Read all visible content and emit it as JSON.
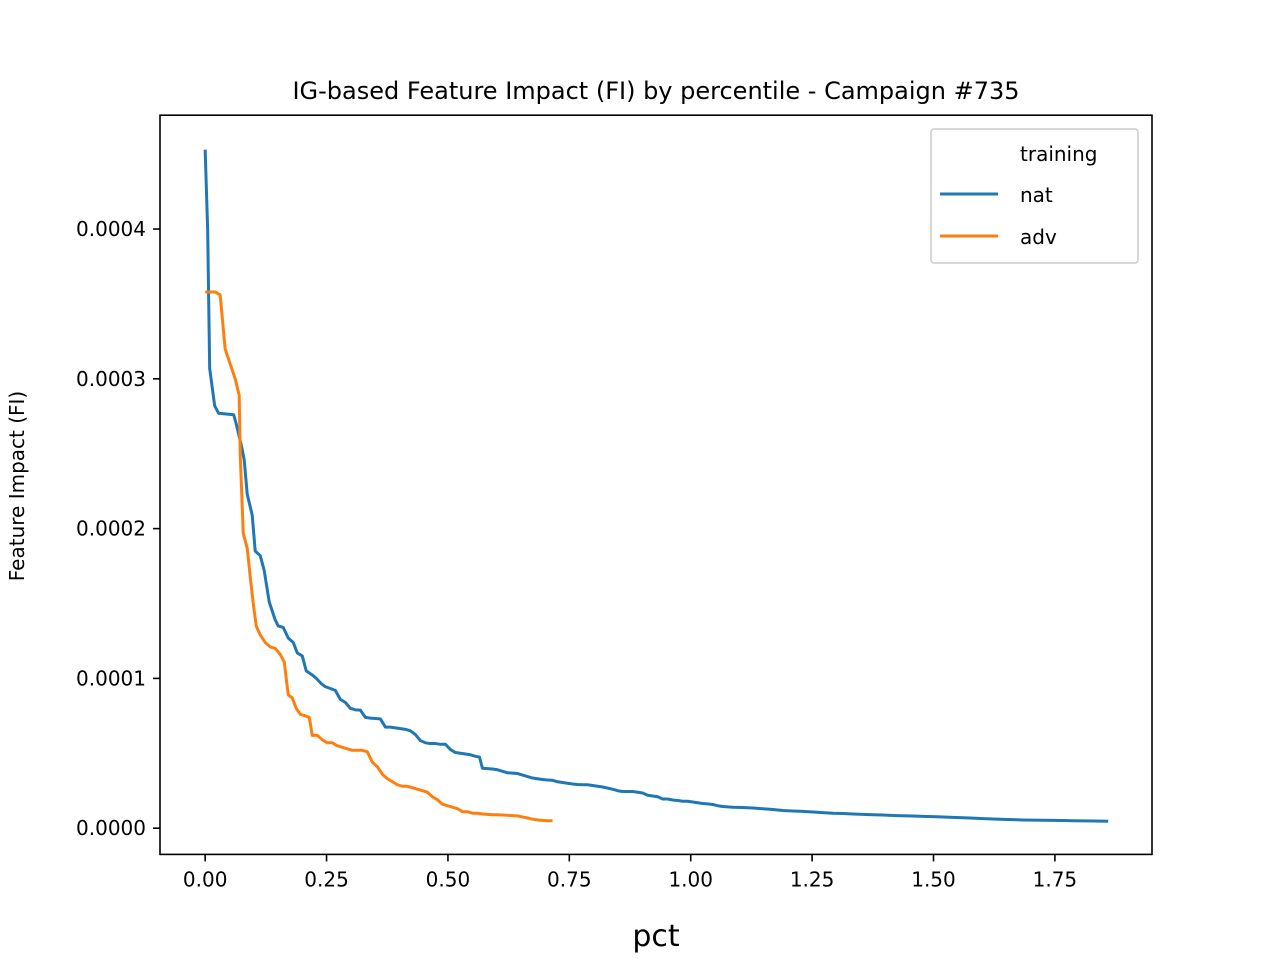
{
  "chart_data": {
    "type": "line",
    "title": "IG-based Feature Impact (FI) by percentile - Campaign #735",
    "xlabel": "pct",
    "ylabel": "Feature Impact (FI)",
    "xlim": [
      -0.093,
      1.95
    ],
    "ylim": [
      -1.75e-05,
      0.000476
    ],
    "x_ticks": [
      0.0,
      0.25,
      0.5,
      0.75,
      1.0,
      1.25,
      1.5,
      1.75
    ],
    "x_tick_labels": [
      "0.00",
      "0.25",
      "0.50",
      "0.75",
      "1.00",
      "1.25",
      "1.50",
      "1.75"
    ],
    "y_ticks": [
      0.0,
      0.0001,
      0.0002,
      0.0003,
      0.0004
    ],
    "y_tick_labels": [
      "0.0000",
      "0.0001",
      "0.0002",
      "0.0003",
      "0.0004"
    ],
    "grid": false,
    "legend": {
      "title": "training",
      "position": "top-right"
    },
    "series": [
      {
        "name": "nat",
        "color": "#1f77b4",
        "points": [
          [
            0.0,
            0.000453
          ],
          [
            0.0052,
            0.000399
          ],
          [
            0.0093,
            0.000307
          ],
          [
            0.0196,
            0.000282
          ],
          [
            0.0278,
            0.000277
          ],
          [
            0.0588,
            0.000276
          ],
          [
            0.0639,
            0.00027
          ],
          [
            0.0742,
            0.000256
          ],
          [
            0.0804,
            0.000246
          ],
          [
            0.0866,
            0.000223
          ],
          [
            0.0969,
            0.000209
          ],
          [
            0.1031,
            0.000185
          ],
          [
            0.1134,
            0.000182
          ],
          [
            0.1216,
            0.000172
          ],
          [
            0.132,
            0.000151
          ],
          [
            0.1443,
            0.000139
          ],
          [
            0.1505,
            0.000135
          ],
          [
            0.1608,
            0.000134
          ],
          [
            0.1711,
            0.000127
          ],
          [
            0.1814,
            0.000124
          ],
          [
            0.1897,
            0.000117
          ],
          [
            0.2,
            0.000115
          ],
          [
            0.2082,
            0.000105
          ],
          [
            0.2216,
            0.000102
          ],
          [
            0.2289,
            0.0001
          ],
          [
            0.2392,
            9.65e-05
          ],
          [
            0.2474,
            9.45e-05
          ],
          [
            0.2557,
            9.35e-05
          ],
          [
            0.268,
            9.2e-05
          ],
          [
            0.2784,
            8.6e-05
          ],
          [
            0.2887,
            8.4e-05
          ],
          [
            0.299,
            8e-05
          ],
          [
            0.3093,
            7.9e-05
          ],
          [
            0.3196,
            7.88e-05
          ],
          [
            0.3299,
            7.4e-05
          ],
          [
            0.3402,
            7.35e-05
          ],
          [
            0.3608,
            7.3e-05
          ],
          [
            0.3711,
            6.75e-05
          ],
          [
            0.3814,
            6.75e-05
          ],
          [
            0.3918,
            6.7e-05
          ],
          [
            0.4021,
            6.65e-05
          ],
          [
            0.4124,
            6.6e-05
          ],
          [
            0.4227,
            6.5e-05
          ],
          [
            0.433,
            6.25e-05
          ],
          [
            0.4433,
            5.85e-05
          ],
          [
            0.4536,
            5.7e-05
          ],
          [
            0.4639,
            5.65e-05
          ],
          [
            0.4742,
            5.65e-05
          ],
          [
            0.4845,
            5.6e-05
          ],
          [
            0.4948,
            5.6e-05
          ],
          [
            0.5052,
            5.25e-05
          ],
          [
            0.5155,
            5.05e-05
          ],
          [
            0.5258,
            5e-05
          ],
          [
            0.5361,
            4.95e-05
          ],
          [
            0.5464,
            4.9e-05
          ],
          [
            0.5567,
            4.8e-05
          ],
          [
            0.5649,
            4.75e-05
          ],
          [
            0.5711,
            4e-05
          ],
          [
            0.5814,
            3.98e-05
          ],
          [
            0.5918,
            3.95e-05
          ],
          [
            0.6021,
            3.9e-05
          ],
          [
            0.6124,
            3.8e-05
          ],
          [
            0.6227,
            3.7e-05
          ],
          [
            0.633,
            3.68e-05
          ],
          [
            0.6433,
            3.65e-05
          ],
          [
            0.6536,
            3.55e-05
          ],
          [
            0.6639,
            3.45e-05
          ],
          [
            0.6742,
            3.35e-05
          ],
          [
            0.6845,
            3.3e-05
          ],
          [
            0.6948,
            3.25e-05
          ],
          [
            0.7052,
            3.22e-05
          ],
          [
            0.7155,
            3.2e-05
          ],
          [
            0.7258,
            3.1e-05
          ],
          [
            0.7361,
            3.05e-05
          ],
          [
            0.7464,
            3e-05
          ],
          [
            0.7567,
            2.95e-05
          ],
          [
            0.767,
            2.92e-05
          ],
          [
            0.7773,
            2.9e-05
          ],
          [
            0.7876,
            2.9e-05
          ],
          [
            0.7979,
            2.85e-05
          ],
          [
            0.8082,
            2.8e-05
          ],
          [
            0.8186,
            2.75e-05
          ],
          [
            0.8289,
            2.68e-05
          ],
          [
            0.8392,
            2.6e-05
          ],
          [
            0.8495,
            2.5e-05
          ],
          [
            0.8598,
            2.45e-05
          ],
          [
            0.8701,
            2.45e-05
          ],
          [
            0.8804,
            2.45e-05
          ],
          [
            0.8907,
            2.4e-05
          ],
          [
            0.901,
            2.35e-05
          ],
          [
            0.9113,
            2.2e-05
          ],
          [
            0.9216,
            2.15e-05
          ],
          [
            0.932,
            2.1e-05
          ],
          [
            0.9423,
            1.95e-05
          ],
          [
            0.9526,
            1.95e-05
          ],
          [
            0.9629,
            1.88e-05
          ],
          [
            0.9732,
            1.85e-05
          ],
          [
            0.9835,
            1.8e-05
          ],
          [
            0.9938,
            1.8e-05
          ],
          [
            1.0041,
            1.75e-05
          ],
          [
            1.0144,
            1.7e-05
          ],
          [
            1.0247,
            1.65e-05
          ],
          [
            1.035,
            1.62e-05
          ],
          [
            1.0454,
            1.58e-05
          ],
          [
            1.0557,
            1.5e-05
          ],
          [
            1.066,
            1.45e-05
          ],
          [
            1.0763,
            1.42e-05
          ],
          [
            1.0866,
            1.4e-05
          ],
          [
            1.1072,
            1.38e-05
          ],
          [
            1.1278,
            1.35e-05
          ],
          [
            1.1485,
            1.3e-05
          ],
          [
            1.1691,
            1.25e-05
          ],
          [
            1.1897,
            1.18e-05
          ],
          [
            1.2103,
            1.15e-05
          ],
          [
            1.2309,
            1.12e-05
          ],
          [
            1.2515,
            1.08e-05
          ],
          [
            1.2722,
            1.04e-05
          ],
          [
            1.2928,
            1e-05
          ],
          [
            1.3134,
            9.8e-06
          ],
          [
            1.334,
            9.5e-06
          ],
          [
            1.3546,
            9.2e-06
          ],
          [
            1.3753,
            9e-06
          ],
          [
            1.3959,
            8.8e-06
          ],
          [
            1.4165,
            8.5e-06
          ],
          [
            1.4371,
            8.3e-06
          ],
          [
            1.4577,
            8.1e-06
          ],
          [
            1.4784,
            7.9e-06
          ],
          [
            1.499,
            7.7e-06
          ],
          [
            1.5196,
            7.5e-06
          ],
          [
            1.5402,
            7.2e-06
          ],
          [
            1.5608,
            7e-06
          ],
          [
            1.5814,
            6.7e-06
          ],
          [
            1.6021,
            6.4e-06
          ],
          [
            1.6227,
            6.1e-06
          ],
          [
            1.6433,
            5.9e-06
          ],
          [
            1.6639,
            5.7e-06
          ],
          [
            1.6845,
            5.5e-06
          ],
          [
            1.7052,
            5.4e-06
          ],
          [
            1.7258,
            5.3e-06
          ],
          [
            1.7464,
            5.2e-06
          ],
          [
            1.767,
            5.1e-06
          ],
          [
            1.7876,
            5e-06
          ],
          [
            1.8082,
            4.9e-06
          ],
          [
            1.8289,
            4.8e-06
          ],
          [
            1.8495,
            4.7e-06
          ],
          [
            1.8598,
            4.6e-06
          ]
        ]
      },
      {
        "name": "adv",
        "color": "#ff7f0e",
        "points": [
          [
            0.0,
            0.000358
          ],
          [
            0.0103,
            0.000358
          ],
          [
            0.0206,
            0.000358
          ],
          [
            0.0309,
            0.000356
          ],
          [
            0.0412,
            0.00032
          ],
          [
            0.0515,
            0.00031
          ],
          [
            0.0619,
            0.0003
          ],
          [
            0.0701,
            0.000289
          ],
          [
            0.0722,
            0.00025
          ],
          [
            0.0784,
            0.000197
          ],
          [
            0.0866,
            0.000187
          ],
          [
            0.0928,
            0.000168
          ],
          [
            0.099,
            0.00015
          ],
          [
            0.1052,
            0.000135
          ],
          [
            0.1134,
            0.000129
          ],
          [
            0.1237,
            0.000124
          ],
          [
            0.134,
            0.000121
          ],
          [
            0.1443,
            0.00012
          ],
          [
            0.1546,
            0.000116
          ],
          [
            0.1629,
            0.000111
          ],
          [
            0.1711,
            8.9e-05
          ],
          [
            0.1794,
            8.7e-05
          ],
          [
            0.1876,
            8e-05
          ],
          [
            0.1959,
            7.6e-05
          ],
          [
            0.2062,
            7.5e-05
          ],
          [
            0.2144,
            7.4e-05
          ],
          [
            0.2206,
            6.2e-05
          ],
          [
            0.2309,
            6.2e-05
          ],
          [
            0.2412,
            5.9e-05
          ],
          [
            0.2515,
            5.7e-05
          ],
          [
            0.2619,
            5.7e-05
          ],
          [
            0.2722,
            5.5e-05
          ],
          [
            0.2825,
            5.4e-05
          ],
          [
            0.2928,
            5.3e-05
          ],
          [
            0.3031,
            5.2e-05
          ],
          [
            0.3134,
            5.2e-05
          ],
          [
            0.3237,
            5.2e-05
          ],
          [
            0.334,
            5.1e-05
          ],
          [
            0.3443,
            4.4e-05
          ],
          [
            0.3546,
            4.1e-05
          ],
          [
            0.3649,
            3.6e-05
          ],
          [
            0.3753,
            3.3e-05
          ],
          [
            0.3856,
            3.1e-05
          ],
          [
            0.3959,
            2.9e-05
          ],
          [
            0.4062,
            2.8e-05
          ],
          [
            0.4165,
            2.8e-05
          ],
          [
            0.4268,
            2.7e-05
          ],
          [
            0.4371,
            2.6e-05
          ],
          [
            0.4474,
            2.5e-05
          ],
          [
            0.4577,
            2.4e-05
          ],
          [
            0.468,
            2.1e-05
          ],
          [
            0.4784,
            1.9e-05
          ],
          [
            0.4887,
            1.6e-05
          ],
          [
            0.499,
            1.5e-05
          ],
          [
            0.5093,
            1.4e-05
          ],
          [
            0.5196,
            1.3e-05
          ],
          [
            0.5299,
            1.1e-05
          ],
          [
            0.5402,
            1.1e-05
          ],
          [
            0.5505,
            1e-05
          ],
          [
            0.5608,
            1e-05
          ],
          [
            0.5711,
            9.5e-06
          ],
          [
            0.5814,
            9.2e-06
          ],
          [
            0.5918,
            9e-06
          ],
          [
            0.6021,
            9e-06
          ],
          [
            0.6124,
            8.8e-06
          ],
          [
            0.6227,
            8.6e-06
          ],
          [
            0.633,
            8.4e-06
          ],
          [
            0.6433,
            8.2e-06
          ],
          [
            0.6536,
            7.5e-06
          ],
          [
            0.6639,
            6.8e-06
          ],
          [
            0.6742,
            6e-06
          ],
          [
            0.6845,
            5.5e-06
          ],
          [
            0.6948,
            5.2e-06
          ],
          [
            0.7052,
            5e-06
          ],
          [
            0.7155,
            5e-06
          ]
        ]
      }
    ]
  }
}
